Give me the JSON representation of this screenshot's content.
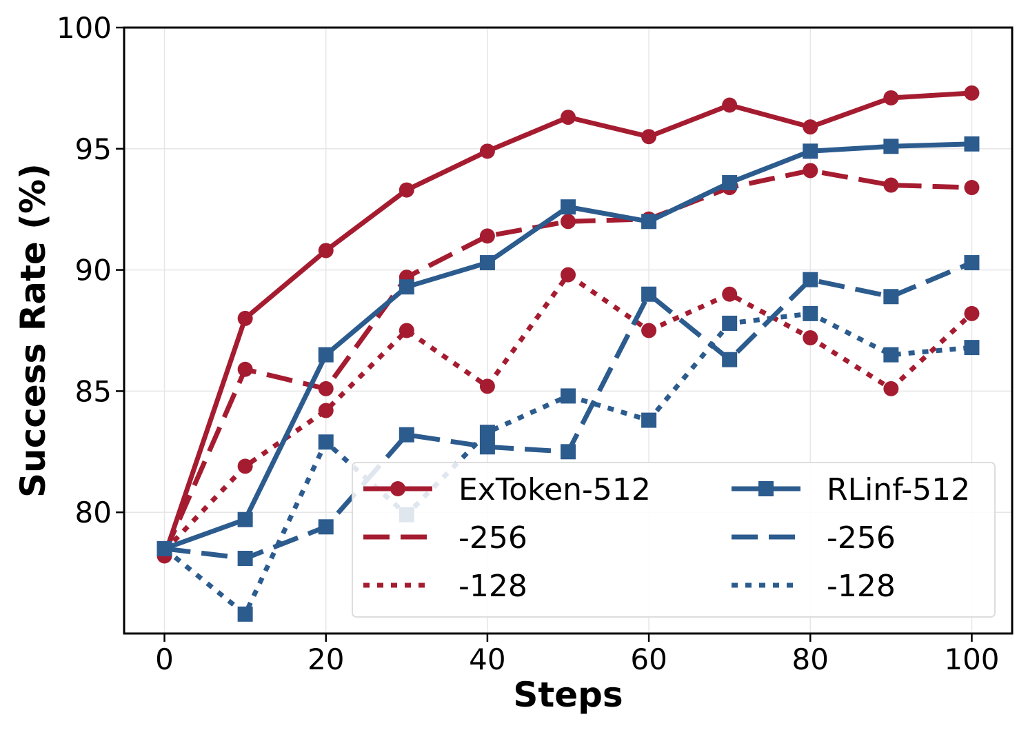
{
  "chart_data": {
    "type": "line",
    "xlabel": "Steps",
    "ylabel": "Success Rate (%)",
    "xlim": [
      -5,
      105
    ],
    "ylim": [
      75,
      100
    ],
    "xticks": [
      0,
      20,
      40,
      60,
      80,
      100
    ],
    "yticks": [
      80,
      85,
      90,
      95,
      100
    ],
    "grid": true,
    "legend_position": "lower-right",
    "x": [
      0,
      10,
      20,
      30,
      40,
      50,
      60,
      70,
      80,
      90,
      100
    ],
    "series": [
      {
        "name": "ExToken-512",
        "color": "#a51c30",
        "marker": "circle",
        "dash": "solid",
        "values": [
          78.2,
          88.0,
          90.8,
          93.3,
          94.9,
          96.3,
          95.5,
          96.8,
          95.9,
          97.1,
          97.3
        ]
      },
      {
        "name": "-256",
        "color": "#a51c30",
        "marker": "circle",
        "dash": "dashed",
        "values": [
          78.3,
          85.9,
          85.1,
          89.7,
          91.4,
          92.0,
          92.1,
          93.4,
          94.1,
          93.5,
          93.4
        ]
      },
      {
        "name": "-128",
        "color": "#a51c30",
        "marker": "circle",
        "dash": "dotted",
        "values": [
          78.4,
          81.9,
          84.2,
          87.5,
          85.2,
          89.8,
          87.5,
          89.0,
          87.2,
          85.1,
          88.2
        ]
      },
      {
        "name": "RLinf-512",
        "color": "#2c5b8e",
        "marker": "square",
        "dash": "solid",
        "values": [
          78.5,
          79.7,
          86.5,
          89.3,
          90.3,
          92.6,
          92.0,
          93.6,
          94.9,
          95.1,
          95.2
        ]
      },
      {
        "name": "-256",
        "color": "#2c5b8e",
        "marker": "square",
        "dash": "dashed",
        "values": [
          78.5,
          78.1,
          79.4,
          83.2,
          82.7,
          82.5,
          89.0,
          86.3,
          89.6,
          88.9,
          90.3
        ]
      },
      {
        "name": "-128",
        "color": "#2c5b8e",
        "marker": "square",
        "dash": "dotted",
        "values": [
          78.5,
          75.8,
          82.9,
          79.9,
          83.3,
          84.8,
          83.8,
          87.8,
          88.2,
          86.5,
          86.8
        ]
      }
    ]
  }
}
